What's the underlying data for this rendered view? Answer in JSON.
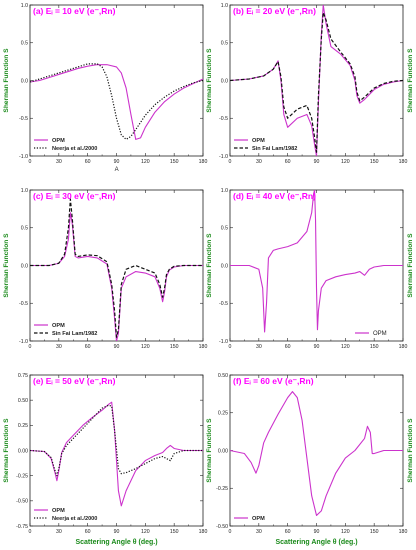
{
  "figure": {
    "x_axis_label": "Scattering Angle θ (deg.)",
    "y_axis_label": "Sherman Function S"
  },
  "chart_data": [
    {
      "id": "a",
      "type": "line",
      "title": "(a) Eᵢ = 10 eV (e⁻,Rn)",
      "xlim": [
        0,
        180
      ],
      "ylim": [
        -1.0,
        1.0
      ],
      "xticks": [
        0,
        30,
        60,
        90,
        120,
        150,
        180
      ],
      "yticks": [
        -1.0,
        -0.5,
        0.0,
        0.5,
        1.0
      ],
      "ytick_labels": [
        "-1.0",
        "-0.5",
        "0.0",
        "0.5",
        "1.0"
      ],
      "legend_position": "bottom-left",
      "annotation": "A",
      "series": [
        {
          "name": "OPM",
          "style": "solid",
          "color": "#cc33cc",
          "x": [
            0,
            10,
            20,
            30,
            40,
            50,
            60,
            70,
            80,
            90,
            95,
            100,
            105,
            110,
            115,
            120,
            130,
            140,
            150,
            160,
            170,
            180
          ],
          "y": [
            -0.02,
            0.0,
            0.04,
            0.08,
            0.12,
            0.16,
            0.19,
            0.21,
            0.21,
            0.18,
            0.1,
            -0.1,
            -0.45,
            -0.78,
            -0.76,
            -0.62,
            -0.42,
            -0.28,
            -0.18,
            -0.1,
            -0.04,
            0.02
          ]
        },
        {
          "name": "Neerja et al./2000",
          "style": "dotted",
          "color": "#111111",
          "x": [
            0,
            10,
            20,
            30,
            40,
            50,
            60,
            70,
            75,
            80,
            85,
            90,
            95,
            100,
            105,
            110,
            120,
            130,
            140,
            150,
            160,
            170,
            180
          ],
          "y": [
            -0.02,
            0.02,
            0.06,
            0.1,
            0.14,
            0.18,
            0.22,
            0.22,
            0.18,
            0.05,
            -0.2,
            -0.5,
            -0.72,
            -0.78,
            -0.74,
            -0.65,
            -0.46,
            -0.32,
            -0.22,
            -0.14,
            -0.08,
            -0.03,
            0.0
          ]
        }
      ]
    },
    {
      "id": "b",
      "type": "line",
      "title": "(b) Eᵢ = 20 eV (e⁻,Rn)",
      "xlim": [
        0,
        180
      ],
      "ylim": [
        -1.0,
        1.0
      ],
      "xticks": [
        0,
        30,
        60,
        90,
        120,
        150,
        180
      ],
      "yticks": [
        -1.0,
        -0.5,
        0.0,
        0.5,
        1.0
      ],
      "ytick_labels": [
        "-1.0",
        "-0.5",
        "0.0",
        "0.5",
        "1.0"
      ],
      "legend_position": "bottom-left",
      "series": [
        {
          "name": "OPM",
          "style": "solid",
          "color": "#cc33cc",
          "x": [
            0,
            20,
            35,
            45,
            50,
            53,
            56,
            60,
            70,
            80,
            85,
            88,
            90,
            92,
            95,
            97,
            100,
            105,
            115,
            125,
            130,
            132,
            135,
            140,
            150,
            160,
            170,
            180
          ],
          "y": [
            0.0,
            0.02,
            0.06,
            0.15,
            0.26,
            0.0,
            -0.45,
            -0.62,
            -0.5,
            -0.45,
            -0.6,
            -0.85,
            -1.0,
            -0.3,
            0.6,
            1.0,
            0.75,
            0.45,
            0.35,
            0.2,
            0.0,
            -0.2,
            -0.3,
            -0.25,
            -0.12,
            -0.05,
            -0.02,
            0.0
          ]
        },
        {
          "name": "Sin Fai Lam/1982",
          "style": "dashed",
          "color": "#111111",
          "x": [
            0,
            20,
            35,
            45,
            50,
            53,
            56,
            60,
            70,
            80,
            85,
            88,
            90,
            92,
            95,
            97,
            100,
            105,
            115,
            125,
            130,
            132,
            135,
            140,
            150,
            160,
            170,
            180
          ],
          "y": [
            0.0,
            0.02,
            0.06,
            0.15,
            0.25,
            0.05,
            -0.35,
            -0.5,
            -0.38,
            -0.33,
            -0.5,
            -0.75,
            -0.95,
            -0.2,
            0.55,
            0.9,
            0.8,
            0.55,
            0.38,
            0.22,
            0.05,
            -0.15,
            -0.27,
            -0.22,
            -0.1,
            -0.04,
            -0.01,
            0.0
          ]
        }
      ]
    },
    {
      "id": "c",
      "type": "line",
      "title": "(c) Eᵢ = 30 eV (e⁻,Rn)",
      "xlim": [
        0,
        180
      ],
      "ylim": [
        -1.0,
        1.0
      ],
      "xticks": [
        0,
        30,
        60,
        90,
        120,
        150,
        180
      ],
      "yticks": [
        -1.0,
        -0.5,
        0.0,
        0.5,
        1.0
      ],
      "ytick_labels": [
        "-1.0",
        "-0.5",
        "0.0",
        "0.5",
        "1.0"
      ],
      "legend_position": "bottom-left",
      "series": [
        {
          "name": "OPM",
          "style": "solid",
          "color": "#cc33cc",
          "x": [
            0,
            20,
            30,
            36,
            40,
            42,
            44,
            47,
            50,
            60,
            70,
            80,
            85,
            88,
            90,
            92,
            95,
            100,
            110,
            120,
            130,
            135,
            138,
            140,
            142,
            145,
            150,
            160,
            170,
            180
          ],
          "y": [
            0.0,
            0.0,
            0.03,
            0.12,
            0.35,
            0.7,
            0.55,
            0.12,
            0.1,
            0.12,
            0.1,
            0.02,
            -0.3,
            -0.7,
            -1.0,
            -0.9,
            -0.3,
            -0.15,
            -0.08,
            -0.1,
            -0.15,
            -0.3,
            -0.48,
            -0.35,
            -0.15,
            -0.06,
            -0.02,
            0.0,
            0.0,
            0.0
          ]
        },
        {
          "name": "Sin Fai Lam/1982",
          "style": "dashed",
          "color": "#111111",
          "x": [
            0,
            20,
            30,
            36,
            40,
            42,
            44,
            47,
            50,
            60,
            70,
            80,
            85,
            88,
            90,
            92,
            95,
            100,
            110,
            120,
            130,
            135,
            138,
            140,
            142,
            145,
            150,
            160,
            170,
            180
          ],
          "y": [
            0.0,
            0.0,
            0.03,
            0.15,
            0.5,
            0.88,
            0.62,
            0.15,
            0.12,
            0.14,
            0.13,
            0.05,
            -0.25,
            -0.6,
            -0.95,
            -0.85,
            -0.25,
            -0.05,
            0.0,
            -0.05,
            -0.1,
            -0.25,
            -0.42,
            -0.3,
            -0.12,
            -0.05,
            -0.01,
            0.0,
            0.0,
            0.0
          ]
        }
      ]
    },
    {
      "id": "d",
      "type": "line",
      "title": "(d) Eᵢ = 40 eV (e⁻,Rn)",
      "xlim": [
        0,
        180
      ],
      "ylim": [
        -1.0,
        1.0
      ],
      "xticks": [
        0,
        30,
        60,
        90,
        120,
        150,
        180
      ],
      "yticks": [
        -1.0,
        -0.5,
        0.0,
        0.5,
        1.0
      ],
      "ytick_labels": [
        "-1.0",
        "-0.5",
        "0.0",
        "0.5",
        "1.0"
      ],
      "legend_position": "bottom-right",
      "series": [
        {
          "name": "OPM",
          "style": "solid",
          "color": "#cc33cc",
          "x": [
            0,
            20,
            30,
            34,
            36,
            38,
            40,
            45,
            50,
            60,
            70,
            80,
            85,
            87,
            88,
            89,
            90,
            91,
            92,
            95,
            100,
            110,
            120,
            130,
            135,
            140,
            145,
            150,
            160,
            170,
            180
          ],
          "y": [
            0.0,
            0.0,
            -0.05,
            -0.3,
            -0.88,
            -0.5,
            0.1,
            0.2,
            0.22,
            0.25,
            0.3,
            0.45,
            0.7,
            0.95,
            1.0,
            0.6,
            -0.3,
            -0.85,
            -0.6,
            -0.3,
            -0.2,
            -0.15,
            -0.12,
            -0.1,
            -0.08,
            -0.13,
            -0.05,
            -0.02,
            0.0,
            0.0,
            0.0
          ]
        }
      ]
    },
    {
      "id": "e",
      "type": "line",
      "title": "(e) Eᵢ = 50 eV (e⁻,Rn)",
      "xlim": [
        0,
        180
      ],
      "ylim": [
        -0.75,
        0.75
      ],
      "xticks": [
        0,
        30,
        60,
        90,
        120,
        150,
        180
      ],
      "yticks": [
        -0.75,
        -0.5,
        -0.25,
        0.0,
        0.25,
        0.5,
        0.75
      ],
      "ytick_labels": [
        "-0.75",
        "-0.50",
        "-0.25",
        "0.00",
        "0.25",
        "0.50",
        "0.75"
      ],
      "legend_position": "bottom-left",
      "series": [
        {
          "name": "OPM",
          "style": "solid",
          "color": "#cc33cc",
          "x": [
            0,
            15,
            22,
            26,
            28,
            30,
            33,
            38,
            45,
            55,
            65,
            75,
            82,
            85,
            88,
            92,
            95,
            100,
            110,
            120,
            130,
            138,
            142,
            146,
            150,
            160,
            170,
            180
          ],
          "y": [
            0.0,
            -0.01,
            -0.08,
            -0.22,
            -0.3,
            -0.2,
            -0.02,
            0.08,
            0.15,
            0.25,
            0.33,
            0.4,
            0.46,
            0.48,
            0.2,
            -0.4,
            -0.55,
            -0.4,
            -0.2,
            -0.1,
            -0.05,
            -0.02,
            0.02,
            0.05,
            0.02,
            0.0,
            0.0,
            0.0
          ]
        },
        {
          "name": "Neerja et al./2000",
          "style": "dotted",
          "color": "#111111",
          "x": [
            0,
            15,
            22,
            26,
            28,
            30,
            33,
            38,
            45,
            55,
            65,
            75,
            82,
            85,
            88,
            92,
            95,
            100,
            110,
            120,
            130,
            138,
            142,
            146,
            150,
            160,
            170,
            180
          ],
          "y": [
            0.0,
            -0.01,
            -0.07,
            -0.2,
            -0.25,
            -0.18,
            -0.03,
            0.05,
            0.12,
            0.22,
            0.32,
            0.42,
            0.45,
            0.44,
            0.2,
            -0.18,
            -0.23,
            -0.22,
            -0.18,
            -0.13,
            -0.08,
            -0.06,
            -0.08,
            -0.1,
            -0.03,
            0.0,
            0.0,
            0.0
          ]
        }
      ]
    },
    {
      "id": "f",
      "type": "line",
      "title": "(f) Eᵢ = 60 eV (e⁻,Rn)",
      "xlim": [
        0,
        180
      ],
      "ylim": [
        -0.5,
        0.5
      ],
      "xticks": [
        0,
        30,
        60,
        90,
        120,
        150,
        180
      ],
      "yticks": [
        -0.5,
        -0.25,
        0.0,
        0.25,
        0.5
      ],
      "ytick_labels": [
        "-0.50",
        "-0.25",
        "0.00",
        "0.25",
        "0.50"
      ],
      "legend_position": "bottom-left",
      "series": [
        {
          "name": "OPM",
          "style": "solid",
          "color": "#cc33cc",
          "x": [
            0,
            15,
            22,
            27,
            30,
            35,
            40,
            50,
            60,
            65,
            70,
            75,
            80,
            85,
            90,
            95,
            100,
            110,
            120,
            130,
            140,
            143,
            146,
            148,
            150,
            160,
            170,
            180
          ],
          "y": [
            0.0,
            -0.02,
            -0.08,
            -0.15,
            -0.1,
            0.05,
            0.12,
            0.24,
            0.35,
            0.39,
            0.35,
            0.2,
            -0.05,
            -0.3,
            -0.43,
            -0.4,
            -0.3,
            -0.15,
            -0.05,
            0.0,
            0.08,
            0.16,
            0.12,
            -0.02,
            -0.02,
            0.0,
            0.0,
            0.0
          ]
        }
      ]
    }
  ]
}
